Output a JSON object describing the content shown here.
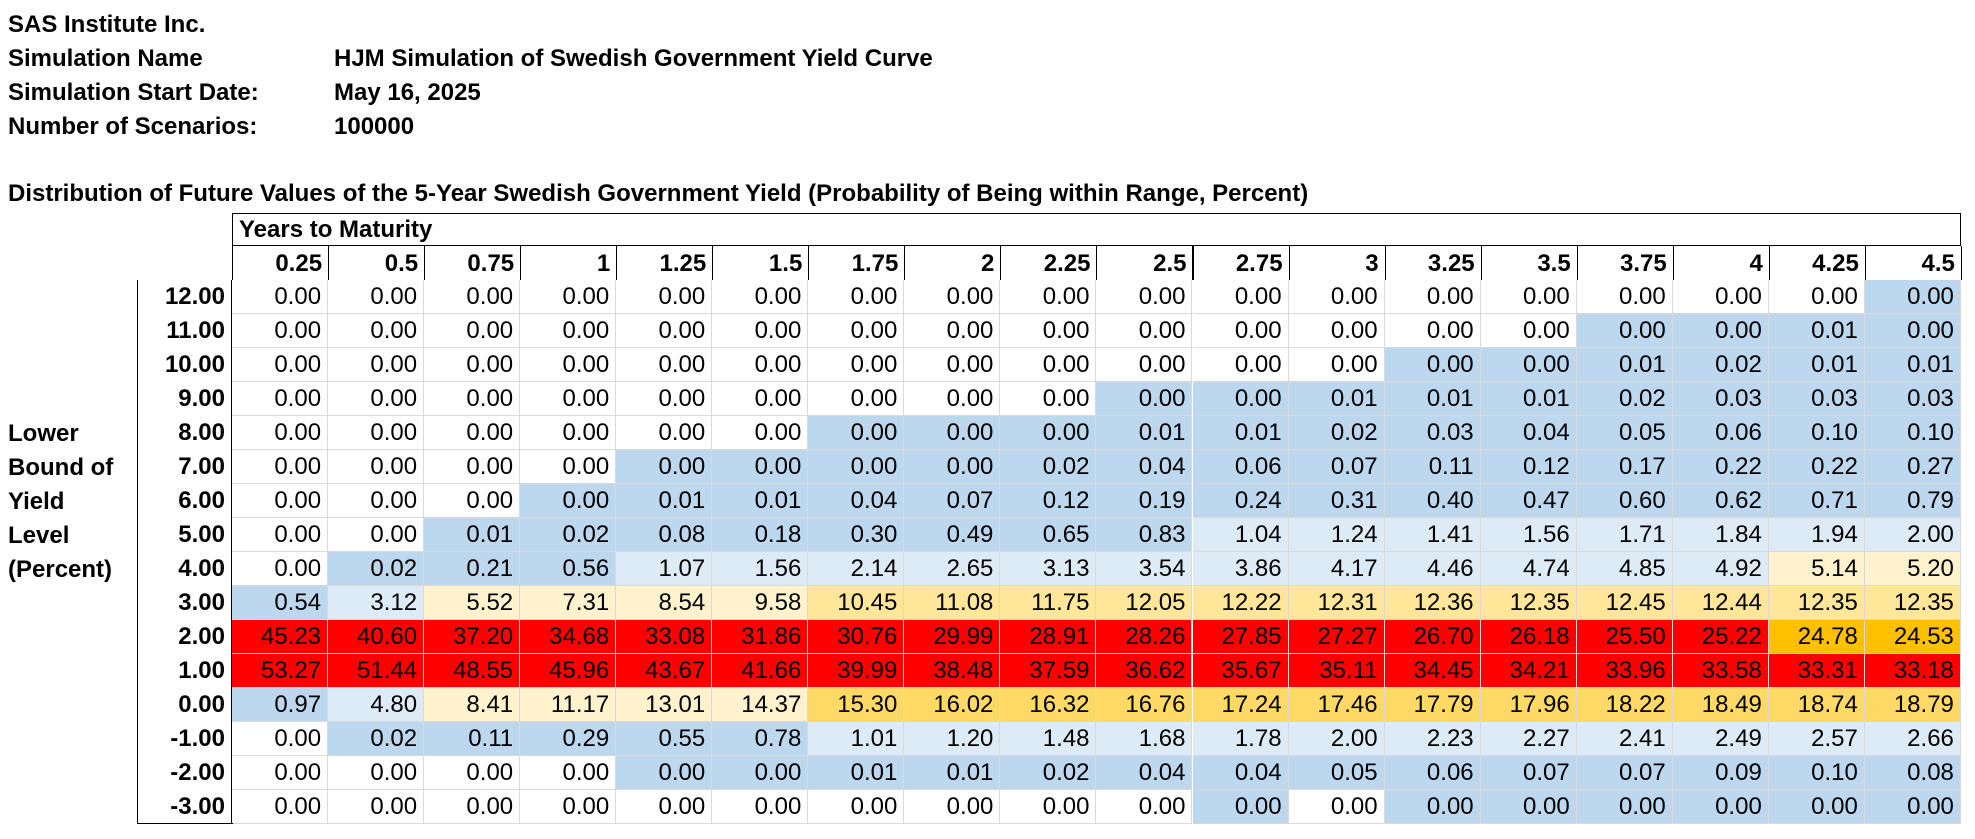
{
  "header": [
    {
      "label": "SAS Institute Inc.",
      "value": ""
    },
    {
      "label": "Simulation Name",
      "value": "HJM Simulation of Swedish Government Yield Curve"
    },
    {
      "label": "Simulation Start Date:",
      "value": "May 16, 2025"
    },
    {
      "label": "Number of Scenarios:",
      "value": "100000"
    }
  ],
  "table_title": "Distribution of Future Values of the 5-Year Swedish Government Yield (Probability of Being within Range, Percent)",
  "years_label": "Years to Maturity",
  "side_label": [
    "Lower",
    "Bound of",
    "Yield",
    "Level",
    "(Percent)"
  ],
  "columns": [
    "0.25",
    "0.5",
    "0.75",
    "1",
    "1.25",
    "1.5",
    "1.75",
    "2",
    "2.25",
    "2.5",
    "2.75",
    "3",
    "3.25",
    "3.5",
    "3.75",
    "4",
    "4.25",
    "4.5"
  ],
  "rows": [
    {
      "label": "12.00",
      "values": [
        "0.00",
        "0.00",
        "0.00",
        "0.00",
        "0.00",
        "0.00",
        "0.00",
        "0.00",
        "0.00",
        "0.00",
        "0.00",
        "0.00",
        "0.00",
        "0.00",
        "0.00",
        "0.00",
        "0.00",
        "0.00"
      ]
    },
    {
      "label": "11.00",
      "values": [
        "0.00",
        "0.00",
        "0.00",
        "0.00",
        "0.00",
        "0.00",
        "0.00",
        "0.00",
        "0.00",
        "0.00",
        "0.00",
        "0.00",
        "0.00",
        "0.00",
        "0.00",
        "0.00",
        "0.01",
        "0.00"
      ]
    },
    {
      "label": "10.00",
      "values": [
        "0.00",
        "0.00",
        "0.00",
        "0.00",
        "0.00",
        "0.00",
        "0.00",
        "0.00",
        "0.00",
        "0.00",
        "0.00",
        "0.00",
        "0.00",
        "0.00",
        "0.01",
        "0.02",
        "0.01",
        "0.01"
      ]
    },
    {
      "label": "9.00",
      "values": [
        "0.00",
        "0.00",
        "0.00",
        "0.00",
        "0.00",
        "0.00",
        "0.00",
        "0.00",
        "0.00",
        "0.00",
        "0.00",
        "0.01",
        "0.01",
        "0.01",
        "0.02",
        "0.03",
        "0.03",
        "0.03"
      ]
    },
    {
      "label": "8.00",
      "values": [
        "0.00",
        "0.00",
        "0.00",
        "0.00",
        "0.00",
        "0.00",
        "0.00",
        "0.00",
        "0.00",
        "0.01",
        "0.01",
        "0.02",
        "0.03",
        "0.04",
        "0.05",
        "0.06",
        "0.10",
        "0.10"
      ]
    },
    {
      "label": "7.00",
      "values": [
        "0.00",
        "0.00",
        "0.00",
        "0.00",
        "0.00",
        "0.00",
        "0.00",
        "0.00",
        "0.02",
        "0.04",
        "0.06",
        "0.07",
        "0.11",
        "0.12",
        "0.17",
        "0.22",
        "0.22",
        "0.27"
      ]
    },
    {
      "label": "6.00",
      "values": [
        "0.00",
        "0.00",
        "0.00",
        "0.00",
        "0.01",
        "0.01",
        "0.04",
        "0.07",
        "0.12",
        "0.19",
        "0.24",
        "0.31",
        "0.40",
        "0.47",
        "0.60",
        "0.62",
        "0.71",
        "0.79"
      ]
    },
    {
      "label": "5.00",
      "values": [
        "0.00",
        "0.00",
        "0.01",
        "0.02",
        "0.08",
        "0.18",
        "0.30",
        "0.49",
        "0.65",
        "0.83",
        "1.04",
        "1.24",
        "1.41",
        "1.56",
        "1.71",
        "1.84",
        "1.94",
        "2.00"
      ]
    },
    {
      "label": "4.00",
      "values": [
        "0.00",
        "0.02",
        "0.21",
        "0.56",
        "1.07",
        "1.56",
        "2.14",
        "2.65",
        "3.13",
        "3.54",
        "3.86",
        "4.17",
        "4.46",
        "4.74",
        "4.85",
        "4.92",
        "5.14",
        "5.20"
      ]
    },
    {
      "label": "3.00",
      "values": [
        "0.54",
        "3.12",
        "5.52",
        "7.31",
        "8.54",
        "9.58",
        "10.45",
        "11.08",
        "11.75",
        "12.05",
        "12.22",
        "12.31",
        "12.36",
        "12.35",
        "12.45",
        "12.44",
        "12.35",
        "12.35"
      ]
    },
    {
      "label": "2.00",
      "values": [
        "45.23",
        "40.60",
        "37.20",
        "34.68",
        "33.08",
        "31.86",
        "30.76",
        "29.99",
        "28.91",
        "28.26",
        "27.85",
        "27.27",
        "26.70",
        "26.18",
        "25.50",
        "25.22",
        "24.78",
        "24.53"
      ]
    },
    {
      "label": "1.00",
      "values": [
        "53.27",
        "51.44",
        "48.55",
        "45.96",
        "43.67",
        "41.66",
        "39.99",
        "38.48",
        "37.59",
        "36.62",
        "35.67",
        "35.11",
        "34.45",
        "34.21",
        "33.96",
        "33.58",
        "33.31",
        "33.18"
      ]
    },
    {
      "label": "0.00",
      "values": [
        "0.97",
        "4.80",
        "8.41",
        "11.17",
        "13.01",
        "14.37",
        "15.30",
        "16.02",
        "16.32",
        "16.76",
        "17.24",
        "17.46",
        "17.79",
        "17.96",
        "18.22",
        "18.49",
        "18.74",
        "18.79"
      ]
    },
    {
      "label": "-1.00",
      "values": [
        "0.00",
        "0.02",
        "0.11",
        "0.29",
        "0.55",
        "0.78",
        "1.01",
        "1.20",
        "1.48",
        "1.68",
        "1.78",
        "2.00",
        "2.23",
        "2.27",
        "2.41",
        "2.49",
        "2.57",
        "2.66"
      ]
    },
    {
      "label": "-2.00",
      "values": [
        "0.00",
        "0.00",
        "0.00",
        "0.00",
        "0.00",
        "0.00",
        "0.01",
        "0.01",
        "0.02",
        "0.04",
        "0.04",
        "0.05",
        "0.06",
        "0.07",
        "0.07",
        "0.09",
        "0.10",
        "0.08"
      ]
    },
    {
      "label": "-3.00",
      "values": [
        "0.00",
        "0.00",
        "0.00",
        "0.00",
        "0.00",
        "0.00",
        "0.00",
        "0.00",
        "0.00",
        "0.00",
        "0.00",
        "0.00",
        "0.00",
        "0.00",
        "0.00",
        "0.00",
        "0.00",
        "0.00"
      ]
    }
  ],
  "colors": {
    "white": "#ffffff",
    "blue_mid": "#bdd7ee",
    "blue_light": "#ddebf7",
    "yellow_light": "#fff2cc",
    "yellow_mid": "#ffe699",
    "yellow_deep": "#ffd966",
    "orange": "#ffc000",
    "red": "#ff0000"
  },
  "cell_colors": [
    [
      "white",
      "white",
      "white",
      "white",
      "white",
      "white",
      "white",
      "white",
      "white",
      "white",
      "white",
      "white",
      "white",
      "white",
      "white",
      "white",
      "white",
      "blue_mid"
    ],
    [
      "white",
      "white",
      "white",
      "white",
      "white",
      "white",
      "white",
      "white",
      "white",
      "white",
      "white",
      "white",
      "white",
      "white",
      "blue_mid",
      "blue_mid",
      "blue_mid",
      "blue_mid"
    ],
    [
      "white",
      "white",
      "white",
      "white",
      "white",
      "white",
      "white",
      "white",
      "white",
      "white",
      "white",
      "white",
      "blue_mid",
      "blue_mid",
      "blue_mid",
      "blue_mid",
      "blue_mid",
      "blue_mid"
    ],
    [
      "white",
      "white",
      "white",
      "white",
      "white",
      "white",
      "white",
      "white",
      "white",
      "blue_mid",
      "blue_mid",
      "blue_mid",
      "blue_mid",
      "blue_mid",
      "blue_mid",
      "blue_mid",
      "blue_mid",
      "blue_mid"
    ],
    [
      "white",
      "white",
      "white",
      "white",
      "white",
      "white",
      "blue_mid",
      "blue_mid",
      "blue_mid",
      "blue_mid",
      "blue_mid",
      "blue_mid",
      "blue_mid",
      "blue_mid",
      "blue_mid",
      "blue_mid",
      "blue_mid",
      "blue_mid"
    ],
    [
      "white",
      "white",
      "white",
      "white",
      "blue_mid",
      "blue_mid",
      "blue_mid",
      "blue_mid",
      "blue_mid",
      "blue_mid",
      "blue_mid",
      "blue_mid",
      "blue_mid",
      "blue_mid",
      "blue_mid",
      "blue_mid",
      "blue_mid",
      "blue_mid"
    ],
    [
      "white",
      "white",
      "white",
      "blue_mid",
      "blue_mid",
      "blue_mid",
      "blue_mid",
      "blue_mid",
      "blue_mid",
      "blue_mid",
      "blue_mid",
      "blue_mid",
      "blue_mid",
      "blue_mid",
      "blue_mid",
      "blue_mid",
      "blue_mid",
      "blue_mid"
    ],
    [
      "white",
      "white",
      "blue_mid",
      "blue_mid",
      "blue_mid",
      "blue_mid",
      "blue_mid",
      "blue_mid",
      "blue_mid",
      "blue_mid",
      "blue_light",
      "blue_light",
      "blue_light",
      "blue_light",
      "blue_light",
      "blue_light",
      "blue_light",
      "blue_light"
    ],
    [
      "white",
      "blue_mid",
      "blue_mid",
      "blue_mid",
      "blue_light",
      "blue_light",
      "blue_light",
      "blue_light",
      "blue_light",
      "blue_light",
      "blue_light",
      "blue_light",
      "blue_light",
      "blue_light",
      "blue_light",
      "blue_light",
      "yellow_light",
      "yellow_light"
    ],
    [
      "blue_mid",
      "blue_light",
      "yellow_light",
      "yellow_light",
      "yellow_light",
      "yellow_light",
      "yellow_mid",
      "yellow_mid",
      "yellow_mid",
      "yellow_mid",
      "yellow_mid",
      "yellow_mid",
      "yellow_mid",
      "yellow_mid",
      "yellow_mid",
      "yellow_mid",
      "yellow_mid",
      "yellow_mid"
    ],
    [
      "red",
      "red",
      "red",
      "red",
      "red",
      "red",
      "red",
      "red",
      "red",
      "red",
      "red",
      "red",
      "red",
      "red",
      "red",
      "red",
      "orange",
      "orange"
    ],
    [
      "red",
      "red",
      "red",
      "red",
      "red",
      "red",
      "red",
      "red",
      "red",
      "red",
      "red",
      "red",
      "red",
      "red",
      "red",
      "red",
      "red",
      "red"
    ],
    [
      "blue_mid",
      "blue_light",
      "yellow_light",
      "yellow_light",
      "yellow_light",
      "yellow_light",
      "yellow_deep",
      "yellow_deep",
      "yellow_deep",
      "yellow_deep",
      "yellow_deep",
      "yellow_deep",
      "yellow_deep",
      "yellow_deep",
      "yellow_deep",
      "yellow_deep",
      "yellow_deep",
      "yellow_deep"
    ],
    [
      "white",
      "blue_mid",
      "blue_mid",
      "blue_mid",
      "blue_mid",
      "blue_mid",
      "blue_light",
      "blue_light",
      "blue_light",
      "blue_light",
      "blue_light",
      "blue_light",
      "blue_light",
      "blue_light",
      "blue_light",
      "blue_light",
      "blue_light",
      "blue_light"
    ],
    [
      "white",
      "white",
      "white",
      "white",
      "blue_mid",
      "blue_mid",
      "blue_mid",
      "blue_mid",
      "blue_mid",
      "blue_mid",
      "blue_mid",
      "blue_mid",
      "blue_mid",
      "blue_mid",
      "blue_mid",
      "blue_mid",
      "blue_mid",
      "blue_mid"
    ],
    [
      "white",
      "white",
      "white",
      "white",
      "white",
      "white",
      "white",
      "white",
      "white",
      "white",
      "blue_mid",
      "white",
      "blue_mid",
      "blue_mid",
      "blue_mid",
      "blue_mid",
      "blue_mid",
      "blue_mid"
    ]
  ]
}
